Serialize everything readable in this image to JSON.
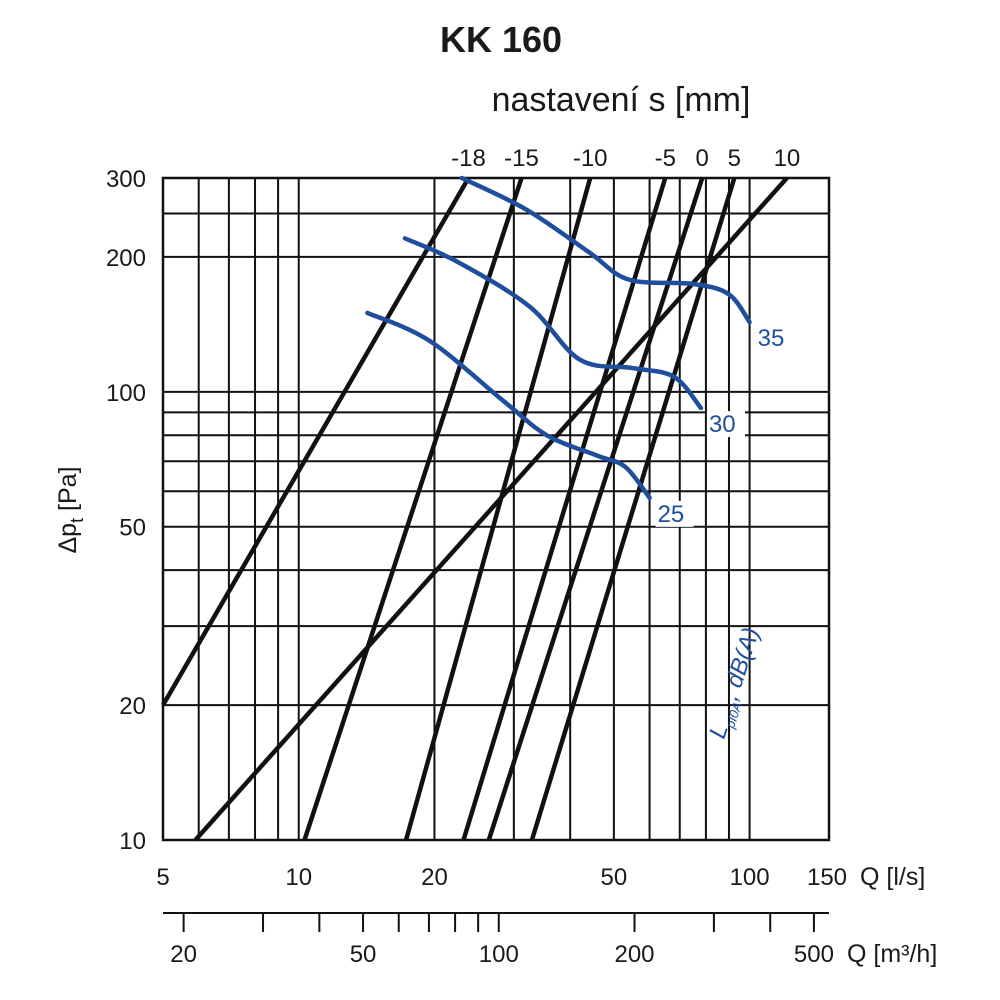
{
  "chart_data": {
    "type": "line",
    "title": "KK 160",
    "top_axis_label": "nastavení s [mm]",
    "xlabel": "Q [l/s]",
    "x2label": "Q [m³/h]",
    "ylabel": "Δpt [Pa]",
    "xscale": "log",
    "yscale": "log",
    "xlim": [
      5,
      150
    ],
    "ylim": [
      10,
      300
    ],
    "grid": true,
    "x_ticks": [
      5,
      10,
      20,
      50,
      100,
      150
    ],
    "x_tick_labels": [
      "5",
      "10",
      "20",
      "50",
      "100",
      "150"
    ],
    "x2_ticks": [
      20,
      50,
      100,
      200,
      500
    ],
    "x2_tick_labels": [
      "20",
      "50",
      "100",
      "200",
      "500"
    ],
    "y_ticks": [
      10,
      20,
      50,
      100,
      200,
      300
    ],
    "y_tick_labels": [
      "10",
      "20",
      "50",
      "100",
      "200",
      "300"
    ],
    "settings": {
      "labels": [
        "-18",
        "-15",
        "-10",
        "-5",
        "0",
        "5",
        "10"
      ],
      "lines": [
        {
          "name": "-18",
          "points": [
            [
              5,
              20
            ],
            [
              23.8,
              300
            ]
          ]
        },
        {
          "name": "-15",
          "points": [
            [
              10.3,
              10
            ],
            [
              31.2,
              300
            ]
          ]
        },
        {
          "name": "-10",
          "points": [
            [
              17.3,
              10
            ],
            [
              44.3,
              300
            ]
          ]
        },
        {
          "name": "-5",
          "points": [
            [
              23.2,
              10
            ],
            [
              65,
              300
            ]
          ]
        },
        {
          "name": "0",
          "points": [
            [
              26.4,
              10
            ],
            [
              78.5,
              300
            ]
          ]
        },
        {
          "name": "5",
          "points": [
            [
              32.9,
              10
            ],
            [
              92.5,
              300
            ]
          ]
        },
        {
          "name": "10",
          "points": [
            [
              5.9,
              10
            ],
            [
              121,
              300
            ]
          ]
        }
      ]
    },
    "noise_label": "LpI0A, dB(A)",
    "noise_curves": [
      {
        "name": "25",
        "points": [
          [
            14.2,
            150
          ],
          [
            19.5,
            130
          ],
          [
            28.6,
            95
          ],
          [
            35.5,
            80
          ],
          [
            46,
            72
          ],
          [
            53,
            68
          ],
          [
            60,
            58
          ]
        ]
      },
      {
        "name": "30",
        "points": [
          [
            17.2,
            220
          ],
          [
            22.5,
            195
          ],
          [
            32.5,
            155
          ],
          [
            42,
            118
          ],
          [
            55,
            113
          ],
          [
            68,
            108
          ],
          [
            78,
            92
          ]
        ]
      },
      {
        "name": "35",
        "points": [
          [
            23,
            300
          ],
          [
            32,
            255
          ],
          [
            44,
            205
          ],
          [
            54,
            178
          ],
          [
            75,
            174
          ],
          [
            90,
            165
          ],
          [
            100,
            143
          ]
        ]
      }
    ]
  }
}
